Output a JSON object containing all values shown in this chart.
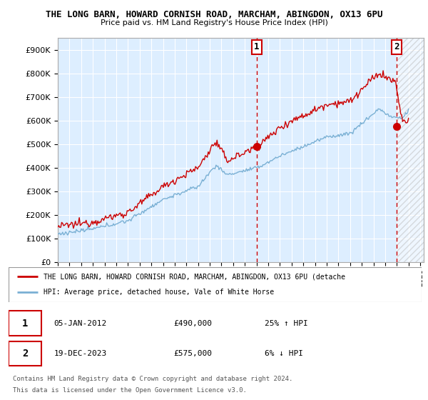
{
  "title1": "THE LONG BARN, HOWARD CORNISH ROAD, MARCHAM, ABINGDON, OX13 6PU",
  "title2": "Price paid vs. HM Land Registry's House Price Index (HPI)",
  "ylabel_ticks": [
    "£0",
    "£100K",
    "£200K",
    "£300K",
    "£400K",
    "£500K",
    "£600K",
    "£700K",
    "£800K",
    "£900K"
  ],
  "ytick_vals": [
    0,
    100000,
    200000,
    300000,
    400000,
    500000,
    600000,
    700000,
    800000,
    900000
  ],
  "ylim": [
    0,
    950000
  ],
  "xlim_start": 1995.0,
  "xlim_end": 2026.3,
  "marker1_x": 2012.02,
  "marker1_y": 490000,
  "marker1_label": "1",
  "marker1_date": "05-JAN-2012",
  "marker1_price": "£490,000",
  "marker1_hpi": "25% ↑ HPI",
  "marker2_x": 2023.96,
  "marker2_y": 575000,
  "marker2_label": "2",
  "marker2_date": "19-DEC-2023",
  "marker2_price": "£575,000",
  "marker2_hpi": "6% ↓ HPI",
  "legend_line1": "THE LONG BARN, HOWARD CORNISH ROAD, MARCHAM, ABINGDON, OX13 6PU (detache",
  "legend_line2": "HPI: Average price, detached house, Vale of White Horse",
  "footer1": "Contains HM Land Registry data © Crown copyright and database right 2024.",
  "footer2": "This data is licensed under the Open Government Licence v3.0.",
  "line_color_red": "#cc0000",
  "line_color_blue": "#7ab0d4",
  "bg_color_chart": "#ddeeff",
  "grid_color": "#ffffff",
  "marker_box_color": "#cc0000",
  "hatch_color": "#cccccc"
}
